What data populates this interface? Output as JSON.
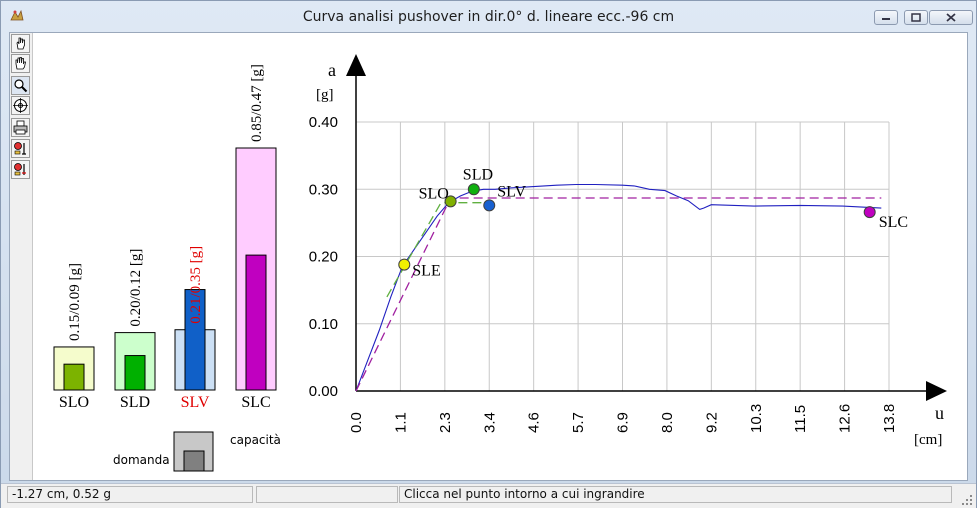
{
  "window": {
    "title": "Curva analisi pushover in dir.0°  d. lineare  ecc.-96 cm",
    "buttons": [
      "minimize",
      "maximize",
      "close"
    ]
  },
  "toolbar": {
    "icons": [
      "pointer-hand-icon",
      "pan-hand-icon",
      "zoom-icon",
      "target-icon",
      "print-icon",
      "marker-point-icon",
      "marker-point-alt-icon"
    ]
  },
  "statusbar": {
    "coords": "-1.27 cm,    0.52 g",
    "message": "Clicca nel punto intorno a cui ingrandire"
  },
  "legend": {
    "demand_label": "domanda",
    "capacity_label": "capacità"
  },
  "chart_data": [
    {
      "type": "bar",
      "categories": [
        "SLO",
        "SLD",
        "SLV",
        "SLC"
      ],
      "series": [
        {
          "name": "domanda",
          "values": [
            0.09,
            0.12,
            0.35,
            0.47
          ]
        },
        {
          "name": "capacità",
          "values": [
            0.15,
            0.2,
            0.21,
            0.85
          ]
        }
      ],
      "value_labels": [
        "0.15/0.09 [g]",
        "0.20/0.12 [g]",
        "0.21/0.35 [g]",
        "0.85/0.47 [g]"
      ],
      "colors": {
        "SLO": {
          "outer": "#f5fccc",
          "inner": "#7cb300"
        },
        "SLD": {
          "outer": "#ccffcc",
          "inner": "#00b000"
        },
        "SLV": {
          "outer": "#cce0f5",
          "inner": "#1060c8"
        },
        "SLC": {
          "outer": "#ffccff",
          "inner": "#c000c0"
        }
      },
      "highlight_category": "SLV",
      "highlight_color": "#e00000"
    },
    {
      "type": "line",
      "xlabel": "u",
      "xunit": "[cm]",
      "ylabel": "a",
      "yunit": "[g]",
      "xlim": [
        0,
        13.8
      ],
      "ylim": [
        0,
        0.4
      ],
      "x_ticks": [
        "0.0",
        "1.1",
        "2.3",
        "3.4",
        "4.6",
        "5.7",
        "6.9",
        "8.0",
        "9.2",
        "10.3",
        "11.5",
        "12.6",
        "13.8"
      ],
      "y_ticks": [
        "0.00",
        "0.10",
        "0.20",
        "0.30",
        "0.40"
      ],
      "grid": true,
      "series": [
        {
          "name": "capacity curve",
          "color": "#2020c0",
          "points": [
            [
              0,
              0
            ],
            [
              0.3,
              0.045
            ],
            [
              0.6,
              0.09
            ],
            [
              0.9,
              0.14
            ],
            [
              1.2,
              0.185
            ],
            [
              1.5,
              0.21
            ],
            [
              1.8,
              0.235
            ],
            [
              2.1,
              0.26
            ],
            [
              2.4,
              0.28
            ],
            [
              2.7,
              0.29
            ],
            [
              3.0,
              0.297
            ],
            [
              3.3,
              0.3
            ],
            [
              3.6,
              0.3
            ],
            [
              4.0,
              0.302
            ],
            [
              4.6,
              0.304
            ],
            [
              5.2,
              0.306
            ],
            [
              5.7,
              0.307
            ],
            [
              6.2,
              0.307
            ],
            [
              6.9,
              0.306
            ],
            [
              7.2,
              0.305
            ],
            [
              7.6,
              0.3
            ],
            [
              8.0,
              0.298
            ],
            [
              8.3,
              0.29
            ],
            [
              8.6,
              0.283
            ],
            [
              8.9,
              0.27
            ],
            [
              9.0,
              0.272
            ],
            [
              9.2,
              0.277
            ],
            [
              10.3,
              0.275
            ],
            [
              11.5,
              0.276
            ],
            [
              12.6,
              0.275
            ],
            [
              13.6,
              0.272
            ]
          ]
        },
        {
          "name": "bilinear",
          "color": "#a020a0",
          "dashed": true,
          "points": [
            [
              0,
              0
            ],
            [
              2.45,
              0.287
            ],
            [
              13.6,
              0.287
            ]
          ]
        },
        {
          "name": "bilinear SLO",
          "color": "#60b040",
          "dashed": true,
          "points": [
            [
              0.8,
              0.14
            ],
            [
              1.6,
              0.22
            ],
            [
              2.2,
              0.28
            ],
            [
              3.4,
              0.28
            ]
          ]
        }
      ],
      "limit_states": [
        {
          "label": "SLE",
          "x": 1.25,
          "y": 0.188,
          "color": "#f0f000"
        },
        {
          "label": "SLO",
          "x": 2.45,
          "y": 0.282,
          "color": "#80b000"
        },
        {
          "label": "SLD",
          "x": 3.05,
          "y": 0.3,
          "color": "#10b010"
        },
        {
          "label": "SLV",
          "x": 3.45,
          "y": 0.276,
          "color": "#1860d0"
        },
        {
          "label": "SLC",
          "x": 13.3,
          "y": 0.266,
          "color": "#c000c0"
        }
      ]
    }
  ]
}
